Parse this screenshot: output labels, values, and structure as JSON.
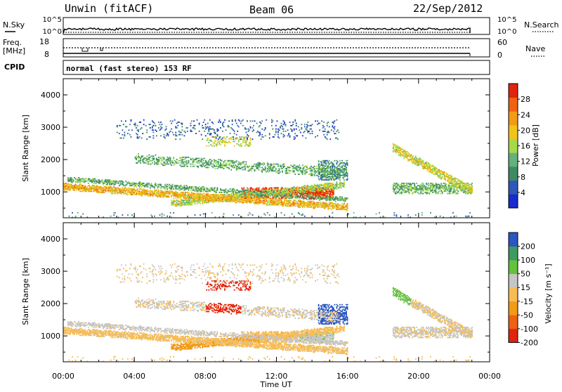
{
  "header": {
    "radar": "Unwin (fitACF)",
    "beam": "Beam 06",
    "date": "22/Sep/2012"
  },
  "strips": {
    "nsky_label": "N.Sky",
    "nsearch_label": "N.Search",
    "nsky_ticks": [
      "10^5",
      "10^0"
    ],
    "nsearch_ticks": [
      "10^5",
      "10^0"
    ],
    "freq_label_line1": "Freq.",
    "freq_label_line2": "[MHz]",
    "freq_ticks": [
      "18",
      "8"
    ],
    "nave_label": "Nave",
    "nave_ticks": [
      "60",
      "0"
    ],
    "cpid_label": "CPID",
    "cpid_text": "normal (fast stereo) 153 RF"
  },
  "colors": {
    "power": [
      "#1a2ccc",
      "#2e58b8",
      "#3f8a63",
      "#62b27a",
      "#a6d94a",
      "#f0c419",
      "#f39a16",
      "#ee6212",
      "#e0240e"
    ],
    "velocity": [
      "#e0240e",
      "#ee6212",
      "#f39a16",
      "#f7bd55",
      "#c6c6c4",
      "#62c23b",
      "#3f9a63",
      "#2a57c0"
    ]
  },
  "chart_data": [
    {
      "type": "heatmap",
      "name": "Power",
      "xlabel": "",
      "ylabel": "Slant Range [km]",
      "x_range_hours": [
        0,
        24
      ],
      "ylim": [
        200,
        4500
      ],
      "y_ticks": [
        1000,
        2000,
        3000,
        4000
      ],
      "colorbar": {
        "label": "Power [dB]",
        "range": [
          0,
          32
        ],
        "ticks": [
          4,
          8,
          12,
          16,
          20,
          24,
          28
        ]
      }
    },
    {
      "type": "heatmap",
      "name": "Velocity",
      "xlabel": "Time UT",
      "ylabel": "Slant Range [km]",
      "x_range_hours": [
        0,
        24
      ],
      "x_tick_labels": [
        "00:00",
        "04:00",
        "08:00",
        "12:00",
        "16:00",
        "20:00",
        "00:00"
      ],
      "ylim": [
        200,
        4500
      ],
      "y_ticks": [
        1000,
        2000,
        3000,
        4000
      ],
      "colorbar": {
        "label": "Velocity [m s⁻¹]",
        "ticks": [
          "200",
          "100",
          "50",
          "15",
          "-15",
          "-50",
          "-100",
          "-200"
        ]
      }
    }
  ]
}
